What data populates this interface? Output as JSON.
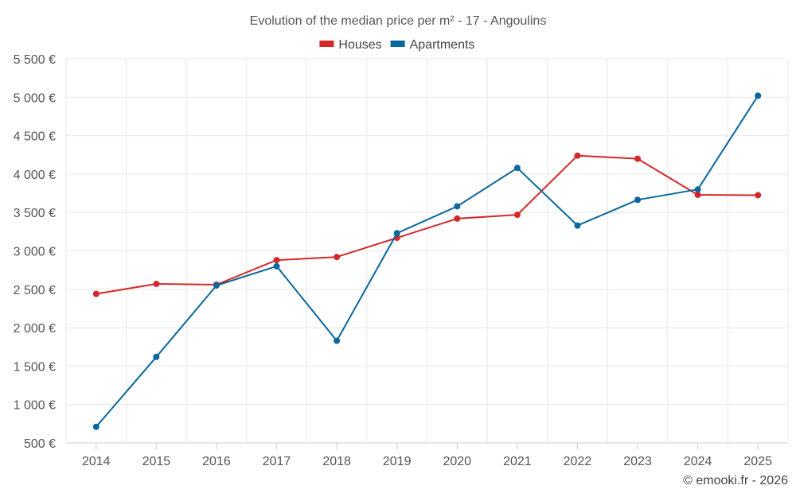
{
  "chart_data": {
    "type": "line",
    "title": "Evolution of the median price per m² - 17 - Angoulins",
    "xlabel": "",
    "ylabel": "",
    "categories": [
      "2014",
      "2015",
      "2016",
      "2017",
      "2018",
      "2019",
      "2020",
      "2021",
      "2022",
      "2023",
      "2024",
      "2025"
    ],
    "ylim": [
      500,
      5500
    ],
    "yticks": [
      500,
      1000,
      1500,
      2000,
      2500,
      3000,
      3500,
      4000,
      4500,
      5000,
      5500
    ],
    "ytick_labels": [
      "500 €",
      "1 000 €",
      "1 500 €",
      "2 000 €",
      "2 500 €",
      "3 000 €",
      "3 500 €",
      "4 000 €",
      "4 500 €",
      "5 000 €",
      "5 500 €"
    ],
    "grid": true,
    "legend_position": "top-center",
    "series": [
      {
        "name": "Houses",
        "color": "#d62728",
        "values": [
          2440,
          2570,
          2560,
          2880,
          2920,
          3170,
          3420,
          3470,
          4240,
          4200,
          3730,
          3725
        ]
      },
      {
        "name": "Apartments",
        "color": "#08679c",
        "values": [
          710,
          1620,
          2550,
          2800,
          1830,
          3230,
          3580,
          4080,
          3330,
          3665,
          3800,
          5020
        ]
      }
    ]
  },
  "credit": "© emooki.fr - 2026"
}
